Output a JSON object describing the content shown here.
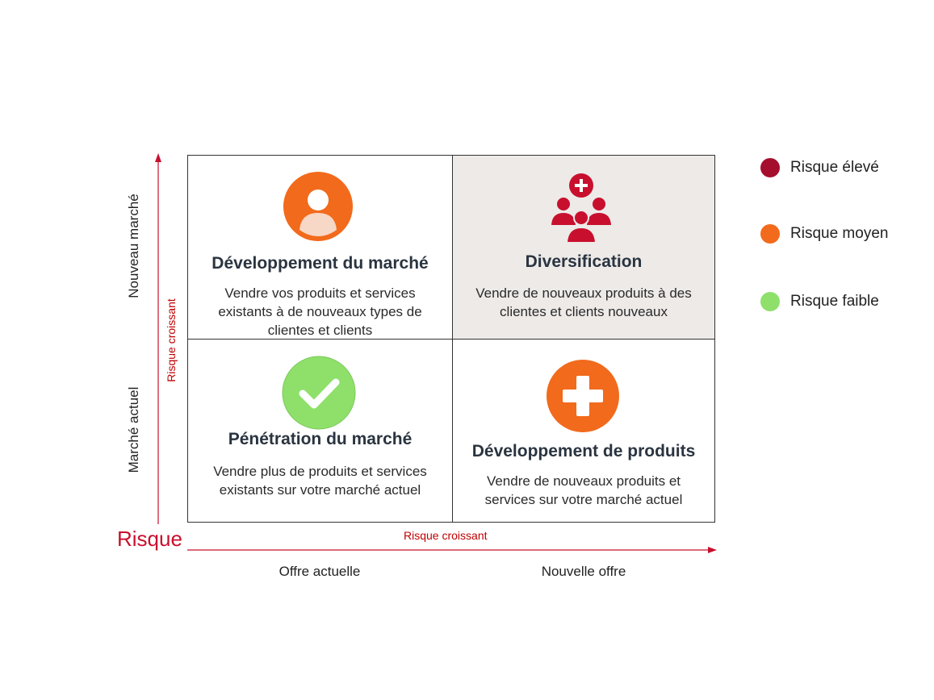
{
  "quadrants": {
    "top_left": {
      "title": "Développement du marché",
      "desc": "Vendre vos produits et services existants à de nouveaux types de clientes et clients",
      "icon": "person-icon",
      "icon_color": "#f26a1b"
    },
    "top_right": {
      "title": "Diversification",
      "desc": "Vendre de nouveaux produits à des clientes et clients nouveaux",
      "icon": "group-plus-icon",
      "icon_color": "#c8102e"
    },
    "bottom_left": {
      "title": "Pénétration du marché",
      "desc": "Vendre plus de produits et services existants sur votre marché actuel",
      "icon": "checkmark-icon",
      "icon_color": "#8ee06a"
    },
    "bottom_right": {
      "title": "Développement de produits",
      "desc": "Vendre de nouveaux produits et services sur votre marché actuel",
      "icon": "plus-icon",
      "icon_color": "#f26a1b"
    }
  },
  "axes": {
    "y_top": "Nouveau marché",
    "y_bottom": "Marché actuel",
    "y_arrow": "Risque croissant",
    "x_arrow": "Risque croissant",
    "x_left": "Offre actuelle",
    "x_right": "Nouvelle offre",
    "risk": "Risque",
    "arrow_color": "#c8102e"
  },
  "legend": [
    {
      "label": "Risque élevé",
      "color": "#a50f2d"
    },
    {
      "label": "Risque moyen",
      "color": "#f26a1b"
    },
    {
      "label": "Risque faible",
      "color": "#8ee06a"
    }
  ]
}
